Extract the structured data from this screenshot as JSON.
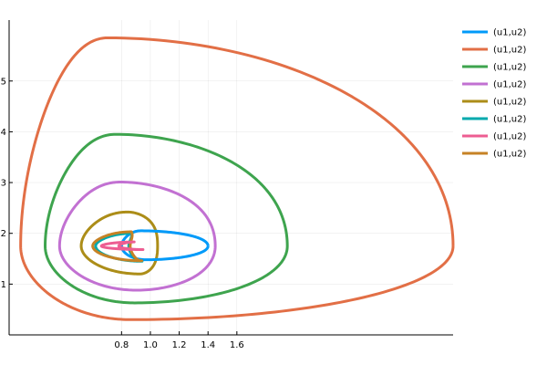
{
  "chart_data": {
    "type": "line",
    "title": "",
    "xlabel": "",
    "ylabel": "",
    "grid": true,
    "legend_placement": "top-right",
    "xlim": [
      0.02,
      3.1
    ],
    "ylim": [
      0.0,
      6.2
    ],
    "xticks": [
      0.8,
      1.0,
      1.2,
      1.4,
      1.6
    ],
    "xtick_labels": [
      "0.8",
      "1.0",
      "1.2",
      "1.4",
      "1.6"
    ],
    "yticks": [
      1,
      2,
      3,
      4,
      5
    ],
    "ytick_labels": [
      "1",
      "2",
      "3",
      "4",
      "5"
    ],
    "series": [
      {
        "name": "(u1,u2)",
        "color": "#009af9",
        "center": [
          1.0,
          1.75
        ],
        "x_range": [
          0.8,
          1.4
        ],
        "y_range": [
          1.48,
          2.05
        ]
      },
      {
        "name": "(u1,u2)",
        "color": "#e26f46",
        "center": [
          1.0,
          1.75
        ],
        "x_range": [
          0.1,
          3.1
        ],
        "y_range": [
          0.3,
          5.85
        ]
      },
      {
        "name": "(u1,u2)",
        "color": "#3ea44e",
        "center": [
          1.0,
          1.75
        ],
        "x_range": [
          0.27,
          1.95
        ],
        "y_range": [
          0.63,
          3.95
        ]
      },
      {
        "name": "(u1,u2)",
        "color": "#c271d2",
        "center": [
          1.0,
          1.75
        ],
        "x_range": [
          0.37,
          1.45
        ],
        "y_range": [
          0.88,
          3.01
        ]
      },
      {
        "name": "(u1,u2)",
        "color": "#ac8d18",
        "center": [
          1.0,
          1.75
        ],
        "x_range": [
          0.52,
          1.05
        ],
        "y_range": [
          1.2,
          2.42
        ]
      },
      {
        "name": "(u1,u2)",
        "color": "#00a9ad",
        "center": [
          1.0,
          1.75
        ],
        "x_range": [
          0.62,
          0.85
        ],
        "y_range": [
          1.45,
          2.0
        ]
      },
      {
        "name": "(u1,u2)",
        "color": "#ed5d92",
        "center": [
          1.0,
          1.75
        ],
        "x_range": [
          0.66,
          0.78
        ],
        "y_range": [
          1.68,
          1.83
        ]
      },
      {
        "name": "(u1,u2)",
        "color": "#c68225",
        "center": [
          1.0,
          1.75
        ],
        "x_range": [
          0.6,
          0.86
        ],
        "y_range": [
          1.46,
          2.03
        ]
      }
    ]
  }
}
